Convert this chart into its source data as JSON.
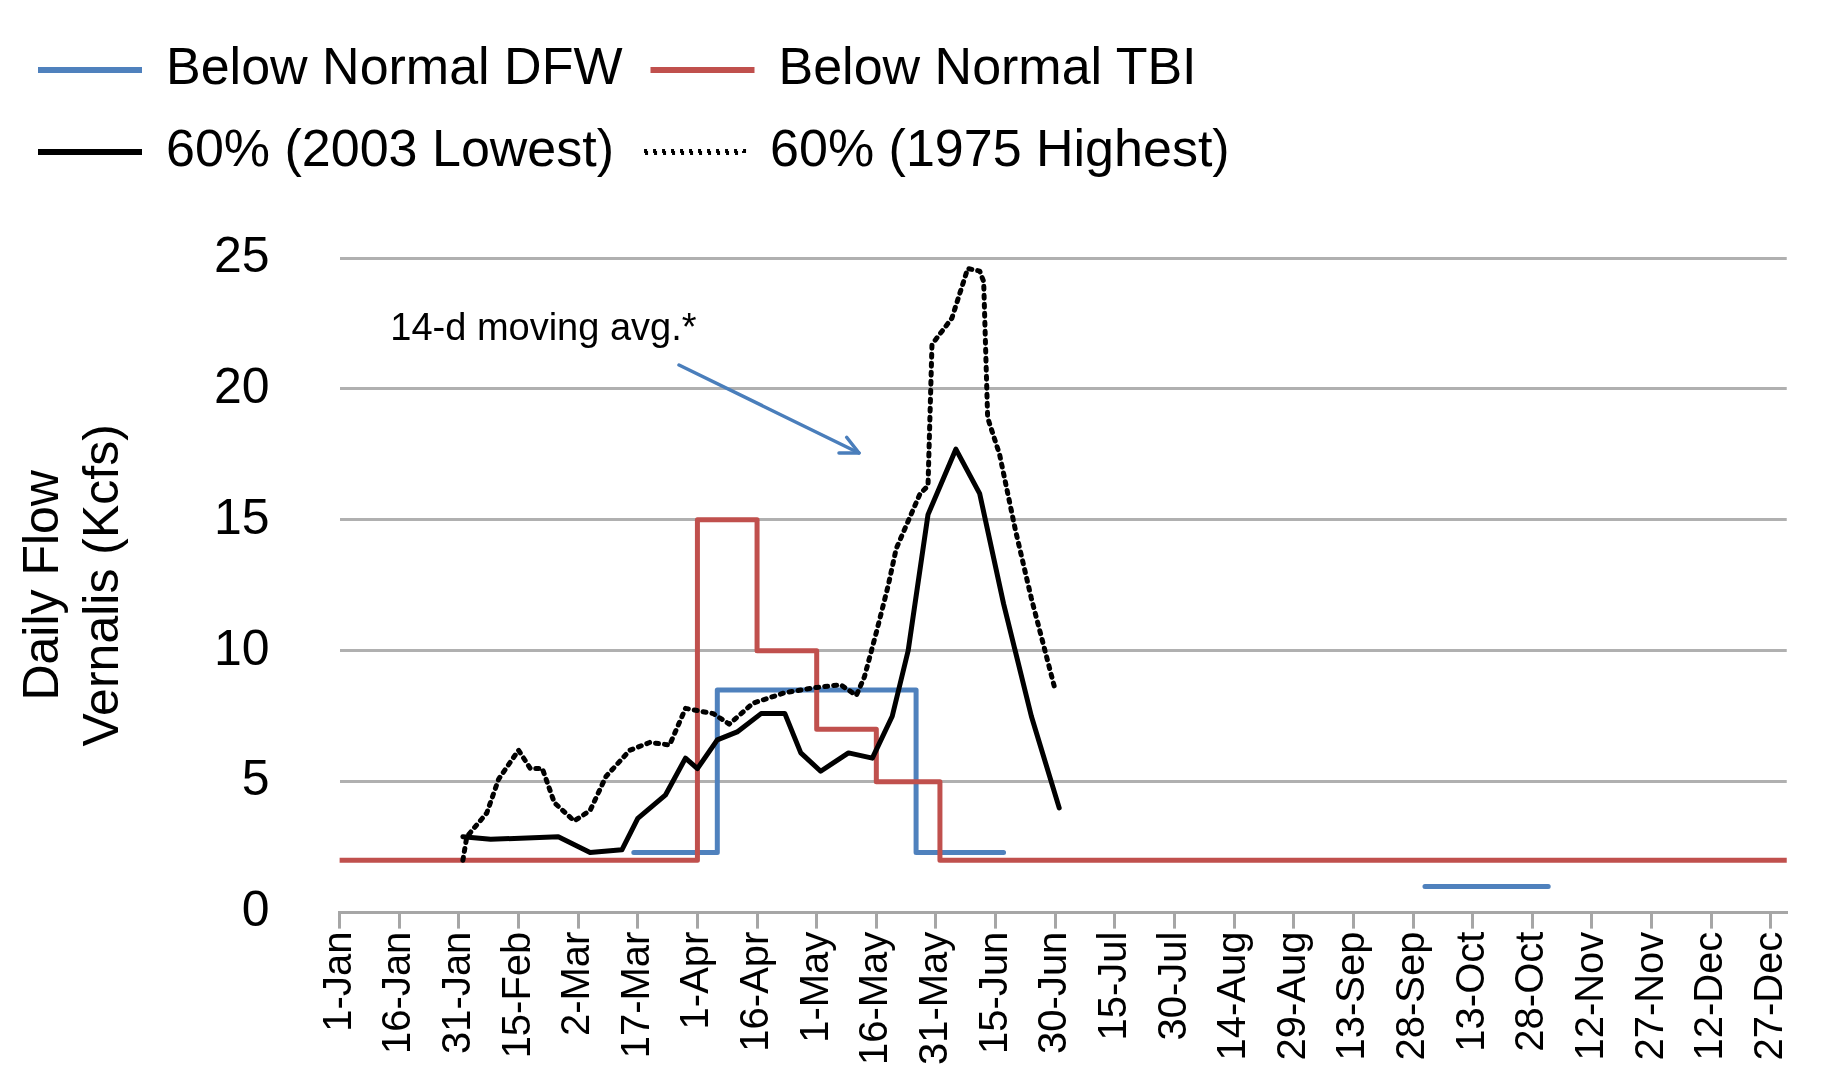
{
  "chart_data": {
    "type": "line",
    "ylabel": "Daily Flow Vernalis (Kcfs)",
    "annotations": [
      "14-d moving avg.*"
    ],
    "xlim": [
      "--01-01",
      "--12-31"
    ],
    "xticks": [
      {
        "value": "--01-01",
        "label": "1-Jan"
      },
      {
        "value": "--01-16",
        "label": "16-Jan"
      },
      {
        "value": "--01-31",
        "label": "31-Jan"
      },
      {
        "value": "--02-15",
        "label": "15-Feb"
      },
      {
        "value": "--03-02",
        "label": "2-Mar"
      },
      {
        "value": "--03-17",
        "label": "17-Mar"
      },
      {
        "value": "--04-01",
        "label": "1-Apr"
      },
      {
        "value": "--04-16",
        "label": "16-Apr"
      },
      {
        "value": "--05-01",
        "label": "1-May"
      },
      {
        "value": "--05-16",
        "label": "16-May"
      },
      {
        "value": "--05-31",
        "label": "31-May"
      },
      {
        "value": "--06-15",
        "label": "15-Jun"
      },
      {
        "value": "--06-30",
        "label": "30-Jun"
      },
      {
        "value": "--07-15",
        "label": "15-Jul"
      },
      {
        "value": "--07-30",
        "label": "30-Jul"
      },
      {
        "value": "--08-14",
        "label": "14-Aug"
      },
      {
        "value": "--08-29",
        "label": "29-Aug"
      },
      {
        "value": "--09-13",
        "label": "13-Sep"
      },
      {
        "value": "--09-28",
        "label": "28-Sep"
      },
      {
        "value": "--10-13",
        "label": "13-Oct"
      },
      {
        "value": "--10-28",
        "label": "28-Oct"
      },
      {
        "value": "--11-12",
        "label": "12-Nov"
      },
      {
        "value": "--11-27",
        "label": "27-Nov"
      },
      {
        "value": "--12-12",
        "label": "12-Dec"
      },
      {
        "value": "--12-27",
        "label": "27-Dec"
      }
    ],
    "ylim": [
      0,
      25
    ],
    "yticks": [
      0,
      5,
      10,
      15,
      20,
      25
    ],
    "grid": "y",
    "legend": "top",
    "marker": "none",
    "series": [
      {
        "name": "Below Normal DFW",
        "type": "step",
        "color": "#4f81bd",
        "x": [
          "--03-16",
          "--04-06",
          "--05-26",
          "--06-17",
          "--08-01",
          "--10-01",
          "--11-01"
        ],
        "values": [
          2.3,
          8.5,
          2.3,
          2.3,
          null,
          1.0,
          1.0
        ]
      },
      {
        "name": "Below Normal TBI",
        "type": "step",
        "color": "#c0504d",
        "x": [
          "--01-01",
          "--04-01",
          "--04-16",
          "--05-01",
          "--05-16",
          "--06-01",
          "--12-31"
        ],
        "values": [
          2.0,
          15,
          10,
          7,
          5,
          2.0,
          2.0
        ]
      },
      {
        "name": "60% (2003 Lowest)",
        "type": "line",
        "color": "#000000",
        "line_style": "solid",
        "x": [
          "--02-01",
          "--02-08",
          "--02-25",
          "--03-05",
          "--03-13",
          "--03-17",
          "--03-24",
          "--03-29",
          "--04-01",
          "--04-06",
          "--04-11",
          "--04-17",
          "--04-23",
          "--04-27",
          "--05-02",
          "--05-09",
          "--05-15",
          "--05-20",
          "--05-24",
          "--05-29",
          "--06-05",
          "--06-11",
          "--06-17",
          "--06-24",
          "--07-01"
        ],
        "values": [
          2.9,
          2.8,
          2.9,
          2.3,
          2.4,
          3.6,
          4.5,
          5.9,
          5.5,
          6.6,
          6.9,
          7.6,
          7.6,
          6.1,
          5.4,
          6.1,
          5.9,
          7.5,
          10.0,
          15.2,
          17.7,
          16.0,
          11.8,
          7.5,
          4.0
        ]
      },
      {
        "name": "60% (1975 Highest)",
        "type": "line",
        "color": "#000000",
        "line_style": "dotted",
        "x": [
          "--02-01",
          "--02-02",
          "--02-07",
          "--02-10",
          "--02-15",
          "--02-18",
          "--02-21",
          "--02-24",
          "--03-01",
          "--03-05",
          "--03-09",
          "--03-15",
          "--03-20",
          "--03-25",
          "--03-29",
          "--04-05",
          "--04-09",
          "--04-15",
          "--04-23",
          "--05-01",
          "--05-07",
          "--05-11",
          "--05-13",
          "--05-16",
          "--05-19",
          "--05-21",
          "--05-27",
          "--05-29",
          "--05-30",
          "--06-04",
          "--06-08",
          "--06-11",
          "--06-12",
          "--06-13",
          "--06-16",
          "--06-20",
          "--06-24",
          "--06-30"
        ],
        "values": [
          2.0,
          2.9,
          3.8,
          5.1,
          6.2,
          5.5,
          5.5,
          4.2,
          3.5,
          3.9,
          5.2,
          6.2,
          6.5,
          6.4,
          7.8,
          7.6,
          7.2,
          8.0,
          8.4,
          8.6,
          8.7,
          8.3,
          9.0,
          10.7,
          12.5,
          13.9,
          16.0,
          16.3,
          21.7,
          22.7,
          24.6,
          24.5,
          24.1,
          18.9,
          17.5,
          14.6,
          12.0,
          8.5
        ]
      }
    ]
  }
}
